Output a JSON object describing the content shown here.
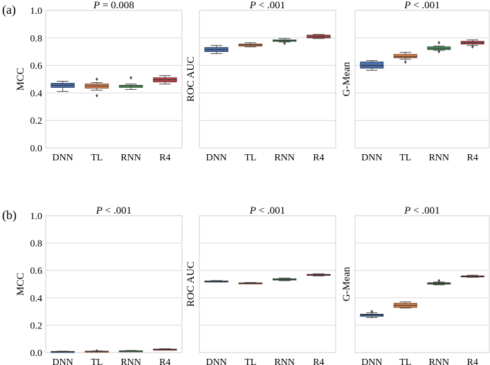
{
  "figure": {
    "rows": [
      {
        "label": "(a)",
        "panels": [
          {
            "title_prefix": "P",
            "title_suffix": " = 0.008",
            "ylabel": "MCC",
            "show_ytick_labels": true,
            "chart_data": {
              "type": "box",
              "categories": [
                "DNN",
                "TL",
                "RNN",
                "R4"
              ],
              "ylim": [
                0.0,
                1.0
              ],
              "yticks": [
                0.0,
                0.2,
                0.4,
                0.6,
                0.8,
                1.0
              ],
              "ytick_labels": [
                "0.0",
                "0.2",
                "0.4",
                "0.6",
                "0.8",
                "1.0"
              ],
              "grid": true,
              "boxes": [
                {
                  "name": "DNN",
                  "color": "#4c72b0",
                  "whislo": 0.41,
                  "q1": 0.44,
                  "med": 0.455,
                  "q3": 0.47,
                  "whishi": 0.485,
                  "fliers": []
                },
                {
                  "name": "TL",
                  "color": "#dd8452",
                  "whislo": 0.42,
                  "q1": 0.435,
                  "med": 0.45,
                  "q3": 0.465,
                  "whishi": 0.475,
                  "fliers": [
                    0.38,
                    0.5
                  ]
                },
                {
                  "name": "RNN",
                  "color": "#55a868",
                  "whislo": 0.425,
                  "q1": 0.44,
                  "med": 0.45,
                  "q3": 0.455,
                  "whishi": 0.465,
                  "fliers": [
                    0.51
                  ]
                },
                {
                  "name": "R4",
                  "color": "#c44e52",
                  "whislo": 0.465,
                  "q1": 0.48,
                  "med": 0.495,
                  "q3": 0.51,
                  "whishi": 0.525,
                  "fliers": []
                }
              ]
            }
          },
          {
            "title_prefix": "P",
            "title_suffix": " < .001",
            "ylabel": "ROC AUC",
            "show_ytick_labels": false,
            "chart_data": {
              "type": "box",
              "categories": [
                "DNN",
                "TL",
                "RNN",
                "R4"
              ],
              "ylim": [
                0.0,
                1.0
              ],
              "yticks": [
                0.0,
                0.2,
                0.4,
                0.6,
                0.8,
                1.0
              ],
              "grid": true,
              "boxes": [
                {
                  "name": "DNN",
                  "color": "#4c72b0",
                  "whislo": 0.685,
                  "q1": 0.7,
                  "med": 0.715,
                  "q3": 0.73,
                  "whishi": 0.745,
                  "fliers": []
                },
                {
                  "name": "TL",
                  "color": "#dd8452",
                  "whislo": 0.735,
                  "q1": 0.74,
                  "med": 0.75,
                  "q3": 0.755,
                  "whishi": 0.765,
                  "fliers": []
                },
                {
                  "name": "RNN",
                  "color": "#55a868",
                  "whislo": 0.77,
                  "q1": 0.775,
                  "med": 0.78,
                  "q3": 0.785,
                  "whishi": 0.795,
                  "fliers": [
                    0.76
                  ]
                },
                {
                  "name": "R4",
                  "color": "#c44e52",
                  "whislo": 0.795,
                  "q1": 0.8,
                  "med": 0.81,
                  "q3": 0.82,
                  "whishi": 0.825,
                  "fliers": []
                }
              ]
            }
          },
          {
            "title_prefix": "P",
            "title_suffix": " < .001",
            "ylabel": "G-Mean",
            "show_ytick_labels": false,
            "chart_data": {
              "type": "box",
              "categories": [
                "DNN",
                "TL",
                "RNN",
                "R4"
              ],
              "ylim": [
                0.0,
                1.0
              ],
              "yticks": [
                0.0,
                0.2,
                0.4,
                0.6,
                0.8,
                1.0
              ],
              "grid": true,
              "boxes": [
                {
                  "name": "DNN",
                  "color": "#4c72b0",
                  "whislo": 0.565,
                  "q1": 0.58,
                  "med": 0.6,
                  "q3": 0.625,
                  "whishi": 0.635,
                  "fliers": []
                },
                {
                  "name": "TL",
                  "color": "#dd8452",
                  "whislo": 0.645,
                  "q1": 0.655,
                  "med": 0.665,
                  "q3": 0.68,
                  "whishi": 0.695,
                  "fliers": [
                    0.625
                  ]
                },
                {
                  "name": "RNN",
                  "color": "#55a868",
                  "whislo": 0.71,
                  "q1": 0.715,
                  "med": 0.725,
                  "q3": 0.735,
                  "whishi": 0.74,
                  "fliers": [
                    0.7,
                    0.765
                  ]
                },
                {
                  "name": "R4",
                  "color": "#c44e52",
                  "whislo": 0.745,
                  "q1": 0.755,
                  "med": 0.765,
                  "q3": 0.775,
                  "whishi": 0.785,
                  "fliers": [
                    0.735
                  ]
                }
              ]
            }
          }
        ]
      },
      {
        "label": "(b)",
        "panels": [
          {
            "title_prefix": "P",
            "title_suffix": " < .001",
            "ylabel": "MCC",
            "show_ytick_labels": true,
            "chart_data": {
              "type": "box",
              "categories": [
                "DNN",
                "TL",
                "RNN",
                "R4"
              ],
              "ylim": [
                0.0,
                1.0
              ],
              "yticks": [
                0.0,
                0.2,
                0.4,
                0.6,
                0.8,
                1.0
              ],
              "ytick_labels": [
                "0.0",
                "0.2",
                "0.4",
                "0.6",
                "0.8",
                "1.0"
              ],
              "grid": true,
              "boxes": [
                {
                  "name": "DNN",
                  "color": "#4c72b0",
                  "whislo": 0.004,
                  "q1": 0.006,
                  "med": 0.007,
                  "q3": 0.008,
                  "whishi": 0.01,
                  "fliers": []
                },
                {
                  "name": "TL",
                  "color": "#dd8452",
                  "whislo": 0.006,
                  "q1": 0.008,
                  "med": 0.009,
                  "q3": 0.01,
                  "whishi": 0.012,
                  "fliers": [
                    0.013
                  ]
                },
                {
                  "name": "RNN",
                  "color": "#55a868",
                  "whislo": 0.007,
                  "q1": 0.009,
                  "med": 0.011,
                  "q3": 0.013,
                  "whishi": 0.015,
                  "fliers": []
                },
                {
                  "name": "R4",
                  "color": "#c44e52",
                  "whislo": 0.018,
                  "q1": 0.021,
                  "med": 0.023,
                  "q3": 0.025,
                  "whishi": 0.028,
                  "fliers": []
                }
              ]
            }
          },
          {
            "title_prefix": "P",
            "title_suffix": " < .001",
            "ylabel": "ROC AUC",
            "show_ytick_labels": false,
            "chart_data": {
              "type": "box",
              "categories": [
                "DNN",
                "TL",
                "RNN",
                "R4"
              ],
              "ylim": [
                0.0,
                1.0
              ],
              "yticks": [
                0.0,
                0.2,
                0.4,
                0.6,
                0.8,
                1.0
              ],
              "grid": true,
              "boxes": [
                {
                  "name": "DNN",
                  "color": "#4c72b0",
                  "whislo": 0.515,
                  "q1": 0.518,
                  "med": 0.52,
                  "q3": 0.523,
                  "whishi": 0.526,
                  "fliers": []
                },
                {
                  "name": "TL",
                  "color": "#dd8452",
                  "whislo": 0.502,
                  "q1": 0.505,
                  "med": 0.507,
                  "q3": 0.509,
                  "whishi": 0.512,
                  "fliers": []
                },
                {
                  "name": "RNN",
                  "color": "#55a868",
                  "whislo": 0.525,
                  "q1": 0.53,
                  "med": 0.535,
                  "q3": 0.539,
                  "whishi": 0.544,
                  "fliers": []
                },
                {
                  "name": "R4",
                  "color": "#c44e52",
                  "whislo": 0.56,
                  "q1": 0.564,
                  "med": 0.567,
                  "q3": 0.571,
                  "whishi": 0.575,
                  "fliers": []
                }
              ]
            }
          },
          {
            "title_prefix": "P",
            "title_suffix": " < .001",
            "ylabel": "G-Mean",
            "show_ytick_labels": false,
            "chart_data": {
              "type": "box",
              "categories": [
                "DNN",
                "TL",
                "RNN",
                "R4"
              ],
              "ylim": [
                0.0,
                1.0
              ],
              "yticks": [
                0.0,
                0.2,
                0.4,
                0.6,
                0.8,
                1.0
              ],
              "grid": true,
              "boxes": [
                {
                  "name": "DNN",
                  "color": "#4c72b0",
                  "whislo": 0.255,
                  "q1": 0.265,
                  "med": 0.275,
                  "q3": 0.28,
                  "whishi": 0.29,
                  "fliers": [
                    0.3
                  ]
                },
                {
                  "name": "TL",
                  "color": "#dd8452",
                  "whislo": 0.325,
                  "q1": 0.33,
                  "med": 0.345,
                  "q3": 0.36,
                  "whishi": 0.37,
                  "fliers": []
                },
                {
                  "name": "RNN",
                  "color": "#55a868",
                  "whislo": 0.495,
                  "q1": 0.5,
                  "med": 0.505,
                  "q3": 0.51,
                  "whishi": 0.515,
                  "fliers": [
                    0.525
                  ]
                },
                {
                  "name": "R4",
                  "color": "#c44e52",
                  "whislo": 0.55,
                  "q1": 0.553,
                  "med": 0.556,
                  "q3": 0.56,
                  "whishi": 0.565,
                  "fliers": []
                }
              ]
            }
          }
        ]
      }
    ]
  }
}
